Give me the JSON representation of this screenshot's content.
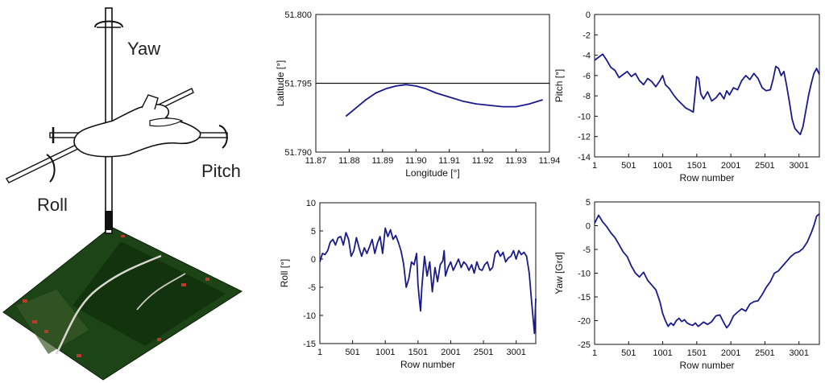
{
  "diagram": {
    "labels": {
      "yaw": "Yaw",
      "pitch": "Pitch",
      "roll": "Roll"
    },
    "colors": {
      "ground_green": "#1f4a16",
      "ground_dark": "#10280c",
      "road": "#d8d8d0",
      "roof_red": "#b83a2a",
      "mast": "#111111"
    }
  },
  "chart_data": [
    {
      "id": "lat_lon",
      "type": "line",
      "title": "",
      "xlabel": "Longitude [°]",
      "ylabel": "Latitude [°]",
      "xlim": [
        11.87,
        11.94
      ],
      "ylim": [
        51.79,
        51.8
      ],
      "xticks": [
        11.87,
        11.88,
        11.89,
        11.9,
        11.91,
        11.92,
        11.93,
        11.94
      ],
      "xtick_labels": [
        "11.87",
        "11.88",
        "11.89",
        "11.90",
        "11.91",
        "11.92",
        "11.93",
        "11.94"
      ],
      "yticks": [
        51.79,
        51.795,
        51.8
      ],
      "ytick_labels": [
        "51.790",
        "51.795",
        "51.800"
      ],
      "hline": 51.795,
      "grid": false,
      "color": "#1a1a8c",
      "x": [
        11.879,
        11.882,
        11.885,
        11.888,
        11.891,
        11.894,
        11.897,
        11.9,
        11.903,
        11.906,
        11.91,
        11.914,
        11.918,
        11.922,
        11.926,
        11.93,
        11.934,
        11.938
      ],
      "y": [
        51.7926,
        51.7932,
        51.7938,
        51.7943,
        51.7946,
        51.7948,
        51.7949,
        51.7948,
        51.7946,
        51.7943,
        51.794,
        51.7937,
        51.7935,
        51.7934,
        51.7933,
        51.7933,
        51.7935,
        51.7938
      ]
    },
    {
      "id": "pitch",
      "type": "line",
      "title": "",
      "xlabel": "Row number",
      "ylabel": "Pitch [°]",
      "xlim": [
        1,
        3300
      ],
      "ylim": [
        -14,
        0
      ],
      "xticks": [
        1,
        501,
        1001,
        1501,
        2001,
        2501,
        3001
      ],
      "yticks": [
        -14,
        -12,
        -10,
        -8,
        -6,
        -4,
        -2,
        0
      ],
      "grid": false,
      "color": "#1a1a8c",
      "x": [
        1,
        60,
        120,
        180,
        240,
        300,
        360,
        420,
        480,
        540,
        600,
        660,
        720,
        780,
        840,
        900,
        960,
        1000,
        1040,
        1100,
        1160,
        1220,
        1280,
        1340,
        1400,
        1450,
        1480,
        1500,
        1530,
        1560,
        1600,
        1660,
        1720,
        1780,
        1840,
        1900,
        1940,
        1980,
        2040,
        2100,
        2160,
        2220,
        2280,
        2340,
        2400,
        2460,
        2520,
        2580,
        2620,
        2660,
        2700,
        2740,
        2780,
        2820,
        2860,
        2900,
        2940,
        2980,
        3020,
        3060,
        3100,
        3140,
        3180,
        3220,
        3260,
        3300
      ],
      "y": [
        -4.5,
        -4.2,
        -3.9,
        -4.5,
        -5.2,
        -5.5,
        -6.2,
        -5.9,
        -5.6,
        -6.1,
        -5.8,
        -6.5,
        -6.9,
        -6.3,
        -6.6,
        -7.1,
        -6.5,
        -6.0,
        -6.9,
        -7.3,
        -7.9,
        -8.4,
        -8.8,
        -9.2,
        -9.4,
        -9.6,
        -7.5,
        -6.1,
        -6.3,
        -7.8,
        -8.3,
        -7.6,
        -8.5,
        -8.2,
        -7.7,
        -8.3,
        -7.5,
        -7.9,
        -7.2,
        -7.4,
        -6.5,
        -6.0,
        -6.4,
        -5.8,
        -6.3,
        -7.2,
        -7.5,
        -7.4,
        -6.4,
        -5.1,
        -5.3,
        -6.0,
        -5.6,
        -7.0,
        -8.6,
        -10.3,
        -11.2,
        -11.5,
        -11.8,
        -11.0,
        -9.5,
        -8.0,
        -6.8,
        -5.8,
        -5.3,
        -5.9
      ]
    },
    {
      "id": "roll",
      "type": "line",
      "title": "",
      "xlabel": "Row number",
      "ylabel": "Roll [°]",
      "xlim": [
        1,
        3300
      ],
      "ylim": [
        -15,
        10
      ],
      "xticks": [
        1,
        501,
        1001,
        1501,
        2001,
        2501,
        3001
      ],
      "yticks": [
        -15,
        -10,
        -5,
        0,
        5,
        10
      ],
      "grid": false,
      "color": "#1a1a8c",
      "x": [
        1,
        40,
        80,
        120,
        160,
        200,
        240,
        280,
        320,
        360,
        400,
        440,
        480,
        520,
        560,
        600,
        640,
        680,
        720,
        760,
        800,
        840,
        880,
        920,
        960,
        1000,
        1040,
        1080,
        1120,
        1160,
        1200,
        1240,
        1280,
        1320,
        1360,
        1400,
        1440,
        1480,
        1500,
        1520,
        1540,
        1560,
        1600,
        1640,
        1680,
        1720,
        1760,
        1800,
        1840,
        1880,
        1900,
        1920,
        1960,
        2000,
        2040,
        2080,
        2120,
        2160,
        2200,
        2240,
        2280,
        2320,
        2360,
        2400,
        2440,
        2480,
        2520,
        2560,
        2600,
        2640,
        2680,
        2720,
        2760,
        2800,
        2840,
        2880,
        2920,
        2960,
        3000,
        3040,
        3080,
        3120,
        3160,
        3200,
        3240,
        3280,
        3300
      ],
      "y": [
        -0.5,
        1.0,
        0.8,
        1.5,
        3.0,
        3.5,
        2.5,
        3.8,
        4.0,
        2.5,
        4.7,
        3.5,
        0.5,
        1.5,
        3.8,
        2.0,
        0.5,
        2.0,
        1.0,
        2.2,
        3.5,
        1.0,
        2.8,
        4.0,
        1.0,
        5.5,
        4.0,
        5.2,
        3.5,
        4.2,
        3.0,
        1.5,
        -0.8,
        -5.0,
        -3.5,
        -0.5,
        -1.0,
        1.0,
        -4.5,
        -7.0,
        -9.2,
        -5.0,
        0.5,
        -3.0,
        -0.5,
        -5.8,
        -1.5,
        -4.0,
        -1.0,
        -0.3,
        1.5,
        -3.0,
        -1.5,
        -0.5,
        -2.0,
        -1.0,
        0.0,
        -1.5,
        -0.5,
        -1.0,
        -2.0,
        -1.0,
        -2.5,
        -0.5,
        -1.8,
        -2.0,
        -1.0,
        -0.5,
        -2.0,
        -1.5,
        1.0,
        1.5,
        0.5,
        1.2,
        -0.5,
        0.2,
        0.5,
        1.5,
        0.0,
        1.5,
        0.8,
        1.2,
        0.5,
        -2.5,
        -8.0,
        -13.2,
        -7.0
      ]
    },
    {
      "id": "yaw",
      "type": "line",
      "title": "",
      "xlabel": "Row number",
      "ylabel": "Yaw [Grd]",
      "xlim": [
        1,
        3300
      ],
      "ylim": [
        -25,
        5
      ],
      "xticks": [
        1,
        501,
        1001,
        1501,
        2001,
        2501,
        3001
      ],
      "yticks": [
        -25,
        -20,
        -15,
        -10,
        -5,
        0,
        5
      ],
      "grid": false,
      "color": "#1a1a8c",
      "x": [
        1,
        60,
        120,
        180,
        240,
        300,
        360,
        420,
        480,
        540,
        600,
        660,
        720,
        780,
        840,
        900,
        960,
        1000,
        1040,
        1080,
        1120,
        1160,
        1200,
        1240,
        1280,
        1320,
        1360,
        1400,
        1440,
        1480,
        1520,
        1560,
        1600,
        1660,
        1720,
        1780,
        1840,
        1900,
        1940,
        1980,
        2040,
        2100,
        2160,
        2220,
        2280,
        2340,
        2400,
        2460,
        2520,
        2580,
        2640,
        2700,
        2760,
        2820,
        2880,
        2940,
        3000,
        3060,
        3120,
        3180,
        3220,
        3260,
        3300
      ],
      "y": [
        0.5,
        2.2,
        0.8,
        -0.2,
        -1.5,
        -2.5,
        -4.0,
        -5.5,
        -6.5,
        -8.5,
        -10.0,
        -10.8,
        -9.8,
        -11.5,
        -12.5,
        -13.5,
        -16.0,
        -18.5,
        -20.0,
        -21.2,
        -20.5,
        -21.0,
        -20.0,
        -19.5,
        -20.2,
        -19.8,
        -20.5,
        -20.8,
        -21.0,
        -20.5,
        -21.2,
        -20.8,
        -20.3,
        -20.8,
        -20.2,
        -19.0,
        -18.8,
        -20.5,
        -21.5,
        -20.8,
        -19.0,
        -18.2,
        -17.5,
        -18.0,
        -16.5,
        -16.0,
        -15.8,
        -14.5,
        -13.0,
        -11.8,
        -10.0,
        -9.5,
        -8.5,
        -7.5,
        -6.5,
        -5.8,
        -5.5,
        -4.8,
        -3.5,
        -1.5,
        0.0,
        2.0,
        2.5
      ]
    }
  ]
}
